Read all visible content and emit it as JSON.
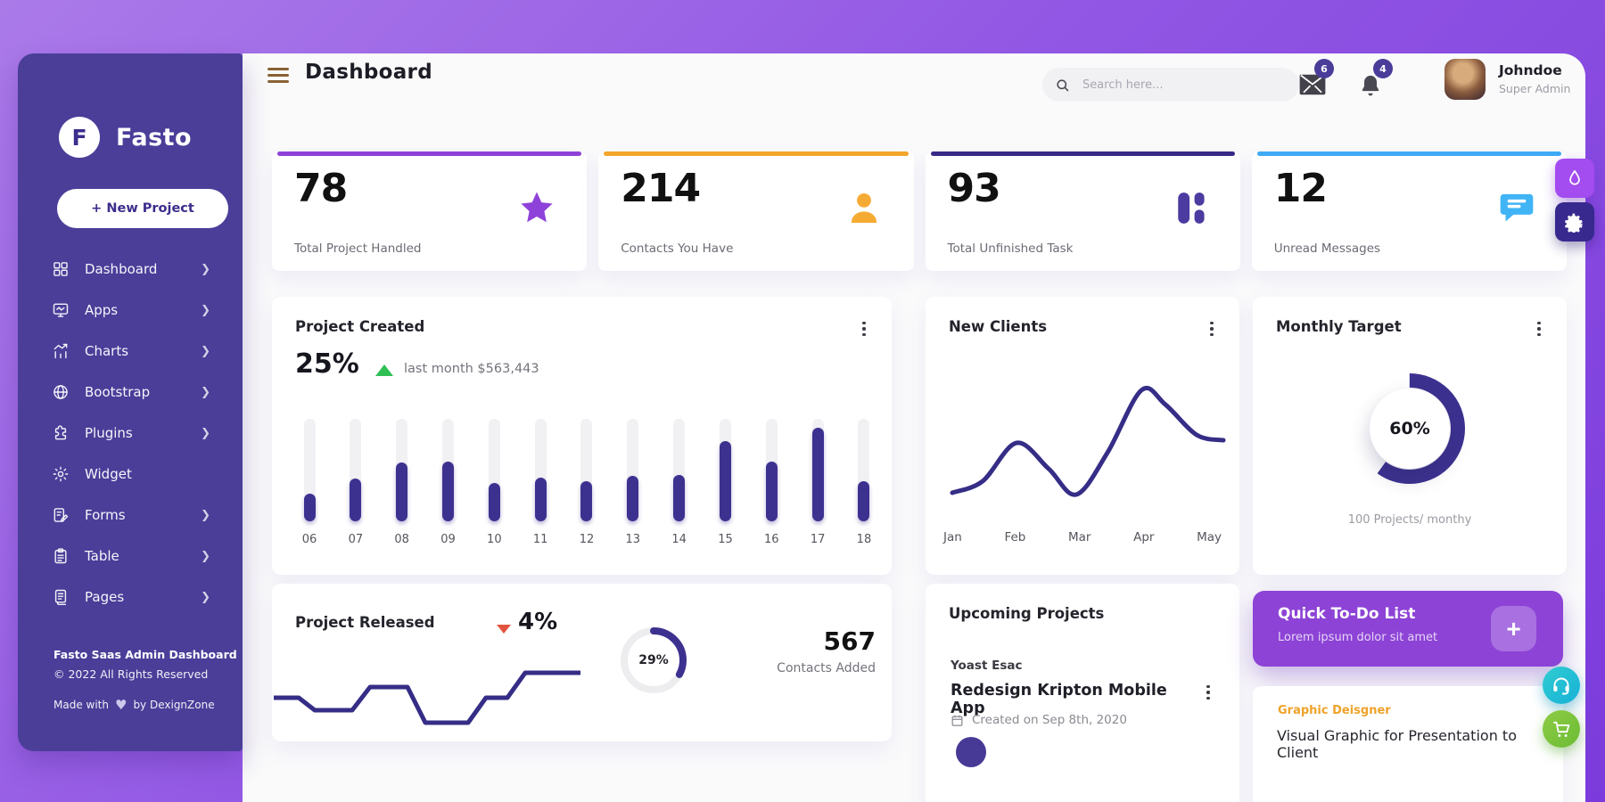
{
  "app": {
    "brand": "Fasto",
    "brand_letter": "F"
  },
  "sidebar": {
    "new_project_label": "+ New Project",
    "items": [
      {
        "label": "Dashboard",
        "icon": "grid",
        "chevron": true
      },
      {
        "label": "Apps",
        "icon": "monitor",
        "chevron": true
      },
      {
        "label": "Charts",
        "icon": "charts",
        "chevron": true
      },
      {
        "label": "Bootstrap",
        "icon": "globe",
        "chevron": true
      },
      {
        "label": "Plugins",
        "icon": "puzzle",
        "chevron": true
      },
      {
        "label": "Widget",
        "icon": "gear",
        "chevron": false
      },
      {
        "label": "Forms",
        "icon": "forms",
        "chevron": true
      },
      {
        "label": "Table",
        "icon": "table",
        "chevron": true
      },
      {
        "label": "Pages",
        "icon": "pages",
        "chevron": true
      }
    ],
    "footer": {
      "line1": "Fasto Saas Admin Dashboard",
      "line2": "© 2022 All Rights Reserved",
      "made_with": "Made with",
      "by": "by DexignZone"
    }
  },
  "header": {
    "title": "Dashboard",
    "search_placeholder": "Search here...",
    "mail_badge": "6",
    "bell_badge": "4",
    "user": {
      "name": "Johndoe",
      "role": "Super Admin"
    }
  },
  "stats": [
    {
      "value": "78",
      "label": "Total Project Handled",
      "icon": "star",
      "accent": "#8f42d9",
      "icon_color": "#8f42d9"
    },
    {
      "value": "214",
      "label": "Contacts You Have",
      "icon": "person",
      "accent": "#f2a52a",
      "icon_color": "#f5ab33"
    },
    {
      "value": "93",
      "label": "Total Unfinished Task",
      "icon": "tiles",
      "accent": "#372a86",
      "icon_color": "#4c3ba0"
    },
    {
      "value": "12",
      "label": "Unread Messages",
      "icon": "chat",
      "accent": "#3fa9f5",
      "icon_color": "#41b4f6"
    }
  ],
  "cards": {
    "project_created": {
      "title": "Project Created",
      "percent": "25%",
      "trend": "up",
      "subtitle": "last month $563,443"
    },
    "new_clients": {
      "title": "New Clients"
    },
    "monthly_target": {
      "title": "Monthly Target",
      "caption": "100 Projects/ monthy"
    },
    "project_released": {
      "title": "Project Released",
      "percent": "4%",
      "trend": "down"
    },
    "contacts_added": {
      "value": "567",
      "label": "Contacts Added"
    },
    "upcoming": {
      "title": "Upcoming Projects",
      "client": "Yoast Esac",
      "project": "Redesign Kripton Mobile App",
      "created": "Created on Sep 8th, 2020"
    },
    "todo": {
      "title": "Quick To-Do List",
      "subtitle": "Lorem ipsum dolor sit amet",
      "add": "+"
    },
    "task": {
      "role": "Graphic Deisgner",
      "text": "Visual Graphic for Presentation to Client"
    }
  },
  "chart_data": [
    {
      "id": "project_created_bars",
      "type": "bar",
      "categories": [
        "06",
        "07",
        "08",
        "09",
        "10",
        "11",
        "12",
        "13",
        "14",
        "15",
        "16",
        "17",
        "18"
      ],
      "values": [
        27,
        42,
        57,
        58,
        37,
        43,
        39,
        44,
        45,
        78,
        58,
        91,
        39
      ],
      "ylim": [
        0,
        100
      ],
      "unit": "percent of track height",
      "color": "#3d3190",
      "track_color": "#f1f1f4",
      "title": "Project Created",
      "legend": "off",
      "grid": "off"
    },
    {
      "id": "new_clients_line",
      "type": "line",
      "x_labels": [
        "Jan",
        "Feb",
        "Mar",
        "Apr",
        "May"
      ],
      "points": [
        [
          16,
          125
        ],
        [
          50,
          112
        ],
        [
          88,
          69
        ],
        [
          124,
          98
        ],
        [
          155,
          127
        ],
        [
          190,
          80
        ],
        [
          228,
          10
        ],
        [
          255,
          26
        ],
        [
          290,
          60
        ],
        [
          320,
          66
        ]
      ],
      "point_space": "330x150 box, y inverted",
      "color": "#352d86",
      "stroke_width": 5,
      "title": "New Clients",
      "legend": "off",
      "grid": "off"
    },
    {
      "id": "monthly_target_donut",
      "type": "pie",
      "value": 60,
      "label": "60%",
      "caption": "100 Projects/ monthy",
      "color": "#3d3190",
      "start": "top",
      "direction": "clockwise"
    },
    {
      "id": "project_released_line",
      "type": "line",
      "points": [
        [
          0,
          50
        ],
        [
          28,
          50
        ],
        [
          46,
          64
        ],
        [
          88,
          64
        ],
        [
          108,
          38
        ],
        [
          150,
          38
        ],
        [
          170,
          78
        ],
        [
          218,
          78
        ],
        [
          238,
          50
        ],
        [
          262,
          50
        ],
        [
          282,
          22
        ],
        [
          344,
          22
        ]
      ],
      "point_space": "344x92 box, y inverted",
      "color": "#352d86",
      "stroke_width": 5,
      "title": "Project Released",
      "legend": "off",
      "grid": "off"
    },
    {
      "id": "contacts_donut",
      "type": "pie",
      "value": 29,
      "label": "29%",
      "arc_sweep": 33,
      "color": "#3d3190",
      "track_color": "#ededef",
      "start": "top",
      "direction": "clockwise"
    }
  ]
}
